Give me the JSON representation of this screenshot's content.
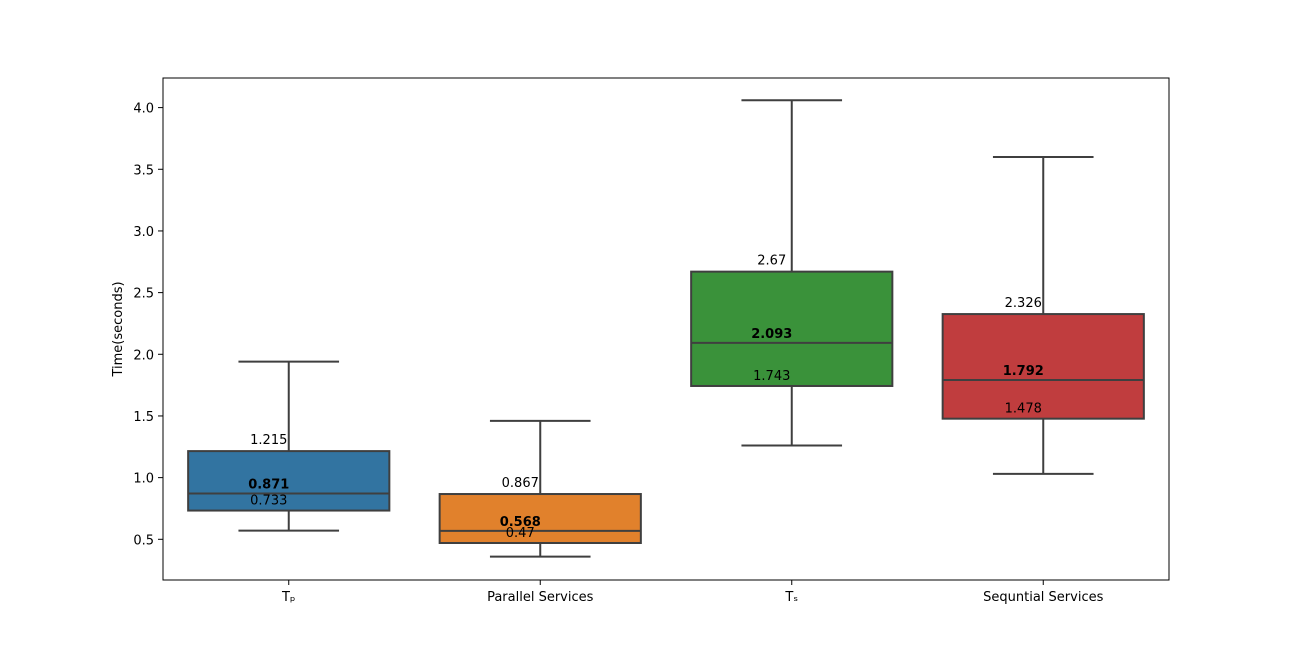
{
  "chart_data": {
    "type": "box",
    "categories": [
      "Tₚ",
      "Parallel Services",
      "Tₛ",
      "Sequntial Services"
    ],
    "series": [
      {
        "q1": 0.733,
        "median": 0.871,
        "q3": 1.215,
        "whisker_low": 0.57,
        "whisker_high": 1.94,
        "color": "#3274a1",
        "labels": {
          "q1": "0.733",
          "median": "0.871",
          "q3": "1.215"
        }
      },
      {
        "q1": 0.47,
        "median": 0.568,
        "q3": 0.867,
        "whisker_low": 0.36,
        "whisker_high": 1.46,
        "color": "#e1812c",
        "labels": {
          "q1": "0.47",
          "median": "0.568",
          "q3": "0.867"
        }
      },
      {
        "q1": 1.743,
        "median": 2.093,
        "q3": 2.67,
        "whisker_low": 1.26,
        "whisker_high": 4.06,
        "color": "#3a923a",
        "labels": {
          "q1": "1.743",
          "median": "2.093",
          "q3": "2.67"
        }
      },
      {
        "q1": 1.478,
        "median": 1.792,
        "q3": 2.326,
        "whisker_low": 1.03,
        "whisker_high": 3.6,
        "color": "#c03d3e",
        "labels": {
          "q1": "1.478",
          "median": "1.792",
          "q3": "2.326"
        }
      }
    ],
    "title": "",
    "xlabel": "",
    "ylabel": "Time(seconds)",
    "ylim": [
      0.17,
      4.24
    ],
    "yticks": [
      0.5,
      1.0,
      1.5,
      2.0,
      2.5,
      3.0,
      3.5,
      4.0
    ],
    "ytick_labels": [
      "0.5",
      "1.0",
      "1.5",
      "2.0",
      "2.5",
      "3.0",
      "3.5",
      "4.0"
    ],
    "grid": false,
    "legend": "none"
  }
}
